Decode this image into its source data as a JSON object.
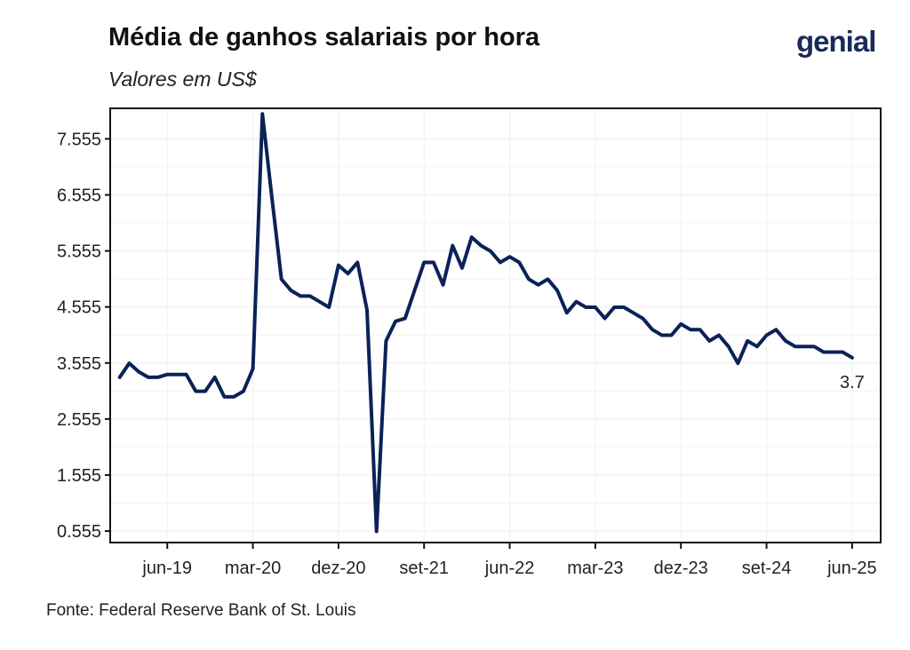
{
  "title": "Média de ganhos salariais por hora",
  "subtitle": "Valores em US$",
  "logo": "genial",
  "source": "Fonte: Federal Reserve Bank of St. Louis",
  "chart_data": {
    "type": "line",
    "title": "Média de ganhos salariais por hora",
    "subtitle": "Valores em US$",
    "xlabel": "",
    "ylabel": "",
    "y_ticks": [
      "0.555",
      "1.555",
      "2.555",
      "3.555",
      "4.555",
      "5.555",
      "6.555",
      "7.555"
    ],
    "x_ticks": [
      {
        "label": "jun-19",
        "x": "2019-06"
      },
      {
        "label": "mar-20",
        "x": "2020-03"
      },
      {
        "label": "dez-20",
        "x": "2020-12"
      },
      {
        "label": "set-21",
        "x": "2021-09"
      },
      {
        "label": "jun-22",
        "x": "2022-06"
      },
      {
        "label": "mar-23",
        "x": "2023-03"
      },
      {
        "label": "dez-23",
        "x": "2023-12"
      },
      {
        "label": "set-24",
        "x": "2024-09"
      },
      {
        "label": "jun-25",
        "x": "2025-06"
      }
    ],
    "x_range": [
      "2018-12",
      "2025-09"
    ],
    "ylim": [
      0.35,
      8.1
    ],
    "grid": true,
    "legend": "none",
    "line_color": "#0b2257",
    "end_label": "3.7",
    "series": [
      {
        "x": [
          "2019-01",
          "2019-02",
          "2019-03",
          "2019-04",
          "2019-05",
          "2019-06",
          "2019-07",
          "2019-08",
          "2019-09",
          "2019-10",
          "2019-11",
          "2019-12",
          "2020-01",
          "2020-02",
          "2020-03",
          "2020-04",
          "2020-05",
          "2020-06",
          "2020-07",
          "2020-08",
          "2020-09",
          "2020-10",
          "2020-11",
          "2020-12",
          "2021-01",
          "2021-02",
          "2021-03",
          "2021-04",
          "2021-05",
          "2021-06",
          "2021-07",
          "2021-08",
          "2021-09",
          "2021-10",
          "2021-11",
          "2021-12",
          "2022-01",
          "2022-02",
          "2022-03",
          "2022-04",
          "2022-05",
          "2022-06",
          "2022-07",
          "2022-08",
          "2022-09",
          "2022-10",
          "2022-11",
          "2022-12",
          "2023-01",
          "2023-02",
          "2023-03",
          "2023-04",
          "2023-05",
          "2023-06",
          "2023-07",
          "2023-08",
          "2023-09",
          "2023-10",
          "2023-11",
          "2023-12",
          "2024-01",
          "2024-02",
          "2024-03",
          "2024-04",
          "2024-05",
          "2024-06",
          "2024-07",
          "2024-08",
          "2024-09",
          "2024-10",
          "2024-11",
          "2024-12",
          "2025-01",
          "2025-02",
          "2025-03",
          "2025-04",
          "2025-05",
          "2025-06"
        ],
        "values": [
          3.3,
          3.55,
          3.4,
          3.3,
          3.3,
          3.35,
          3.35,
          3.35,
          3.05,
          3.05,
          3.3,
          2.95,
          2.95,
          3.05,
          3.45,
          8.0,
          6.5,
          5.05,
          4.85,
          4.75,
          4.75,
          4.65,
          4.55,
          5.3,
          5.15,
          5.35,
          4.5,
          0.55,
          3.95,
          4.3,
          4.35,
          4.85,
          5.35,
          5.35,
          4.95,
          5.65,
          5.25,
          5.8,
          5.65,
          5.55,
          5.35,
          5.45,
          5.35,
          5.05,
          4.95,
          5.05,
          4.85,
          4.45,
          4.65,
          4.55,
          4.55,
          4.35,
          4.55,
          4.55,
          4.45,
          4.35,
          4.15,
          4.05,
          4.05,
          4.25,
          4.15,
          4.15,
          3.95,
          4.05,
          3.85,
          3.55,
          3.95,
          3.85,
          4.05,
          4.15,
          3.95,
          3.85,
          3.85,
          3.85,
          3.75,
          3.75,
          3.75,
          3.65
        ]
      }
    ]
  }
}
